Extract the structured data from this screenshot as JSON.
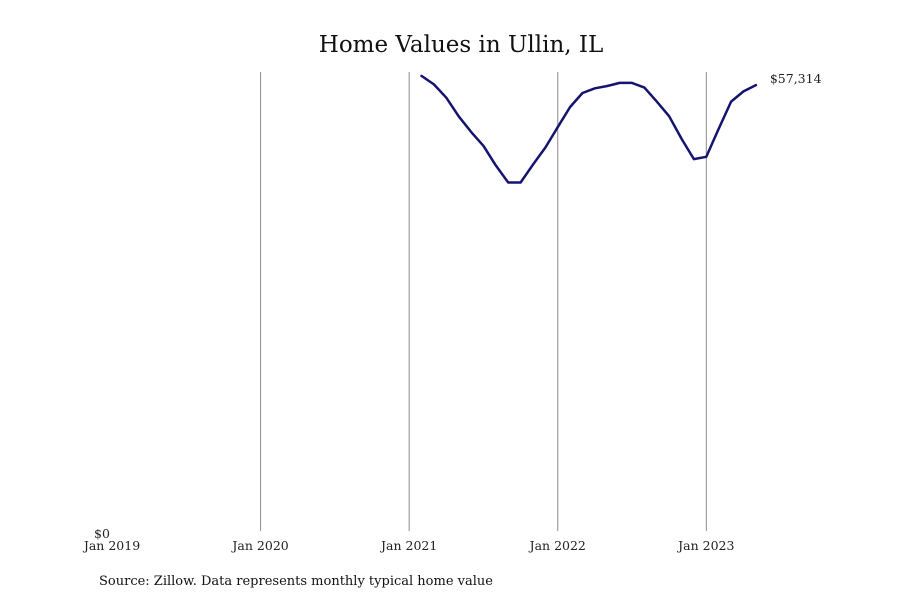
{
  "chart_data": {
    "type": "line",
    "title": "Home Values in Ullin, IL",
    "xlabel": "",
    "ylabel": "",
    "x_ticks": [
      "Jan 2019",
      "Jan 2020",
      "Jan 2021",
      "Jan 2022",
      "Jan 2023"
    ],
    "y_ticks": [
      "$0"
    ],
    "xlim": [
      "2019-01",
      "2023-08"
    ],
    "ylim": [
      0,
      59000
    ],
    "grid": "vertical",
    "legend": "none",
    "line_color": "#141470",
    "gridline_color": "#8c8c8c",
    "end_label": "$57,314",
    "source": "Source: Zillow. Data represents monthly typical home value",
    "series": [
      {
        "x": [
          "2021-02",
          "2021-03",
          "2021-04",
          "2021-05",
          "2021-06",
          "2021-07",
          "2021-08",
          "2021-09",
          "2021-10",
          "2021-11",
          "2021-12",
          "2022-01",
          "2022-02",
          "2022-03",
          "2022-04",
          "2022-05",
          "2022-06",
          "2022-07",
          "2022-08",
          "2022-09",
          "2022-10",
          "2022-11",
          "2022-12",
          "2023-01",
          "2023-02",
          "2023-03",
          "2023-04",
          "2023-05"
        ],
        "values": [
          58500,
          57400,
          55700,
          53300,
          51300,
          49500,
          47000,
          44800,
          44800,
          47100,
          49300,
          51900,
          54500,
          56300,
          56900,
          57200,
          57600,
          57600,
          57000,
          55200,
          53300,
          50400,
          47800,
          48100,
          51700,
          55200,
          56500,
          57314
        ]
      }
    ]
  }
}
